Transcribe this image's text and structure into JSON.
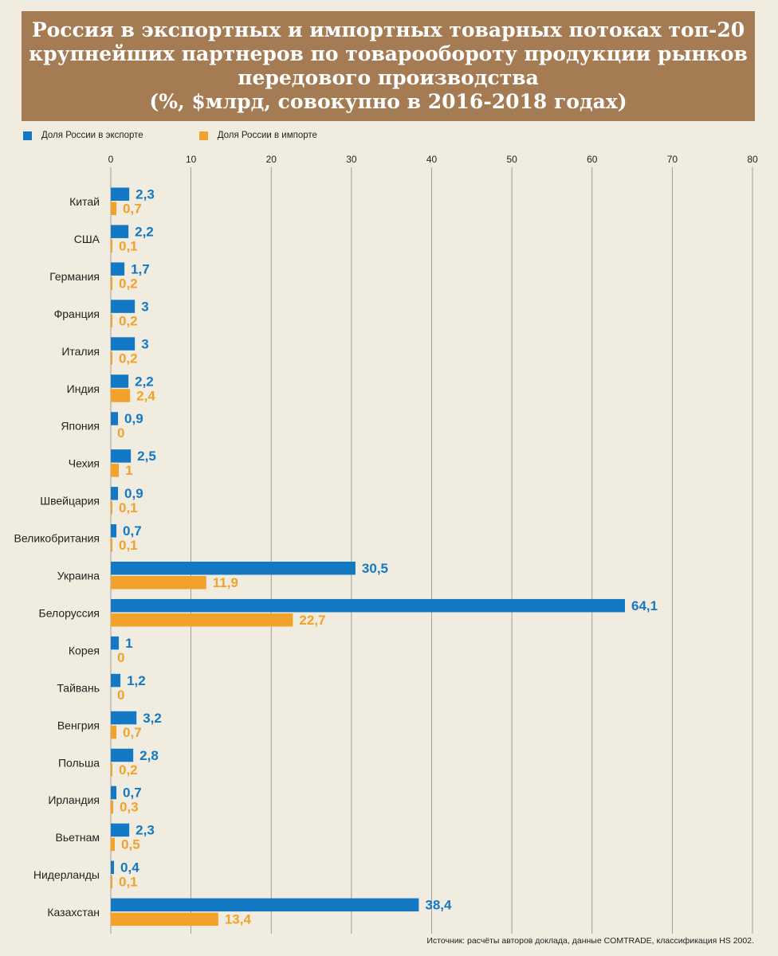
{
  "header": {
    "title_lines": [
      "Россия в экспортных и импортных товарных потоках топ-20",
      "крупнейших партнеров по товарообороту продукции рынков",
      "передового производства",
      "(%, $млрд, совокупно в 2016-2018 годах)"
    ]
  },
  "colors": {
    "export": "#1479c4",
    "import": "#f2a22a",
    "header_bg": "#a47b53",
    "background": "#f1ece0",
    "grid": "#8f8a82"
  },
  "source": "Источник: расчёты авторов доклада, данные COMTRADE, классификация HS 2002.",
  "chart_data": {
    "type": "bar",
    "orientation": "horizontal",
    "title": "Россия в экспортных и импортных товарных потоках топ-20 крупнейших партнеров по товарообороту продукции рынков передового производства (%, $млрд, совокупно в 2016-2018 годах)",
    "xlabel": "",
    "ylabel": "",
    "xlim": [
      0,
      80
    ],
    "xticks": [
      0,
      10,
      20,
      30,
      40,
      50,
      60,
      70,
      80
    ],
    "grid": true,
    "legend_position": "top-left",
    "categories": [
      "Китай",
      "США",
      "Германия",
      "Франция",
      "Италия",
      "Индия",
      "Япония",
      "Чехия",
      "Швейцария",
      "Великобритания",
      "Украина",
      "Белоруссия",
      "Корея",
      "Тайвань",
      "Венгрия",
      "Польша",
      "Ирландия",
      "Вьетнам",
      "Нидерланды",
      "Казахстан"
    ],
    "series": [
      {
        "name": "Доля России в экспорте",
        "values": [
          2.3,
          2.2,
          1.7,
          3,
          3,
          2.2,
          0.9,
          2.5,
          0.9,
          0.7,
          30.5,
          64.1,
          1,
          1.2,
          3.2,
          2.8,
          0.7,
          2.3,
          0.4,
          38.4
        ],
        "labels": [
          "2,3",
          "2,2",
          "1,7",
          "3",
          "3",
          "2,2",
          "0,9",
          "2,5",
          "0,9",
          "0,7",
          "30,5",
          "64,1",
          "1",
          "1,2",
          "3,2",
          "2,8",
          "0,7",
          "2,3",
          "0,4",
          "38,4"
        ]
      },
      {
        "name": "Доля России в импорте",
        "values": [
          0.7,
          0.1,
          0.2,
          0.2,
          0.2,
          2.4,
          0,
          1,
          0.1,
          0.1,
          11.9,
          22.7,
          0,
          0,
          0.7,
          0.2,
          0.3,
          0.5,
          0.1,
          13.4
        ],
        "labels": [
          "0,7",
          "0,1",
          "0,2",
          "0,2",
          "0,2",
          "2,4",
          "0",
          "1",
          "0,1",
          "0,1",
          "11,9",
          "22,7",
          "0",
          "0",
          "0,7",
          "0,2",
          "0,3",
          "0,5",
          "0,1",
          "13,4"
        ]
      }
    ]
  }
}
